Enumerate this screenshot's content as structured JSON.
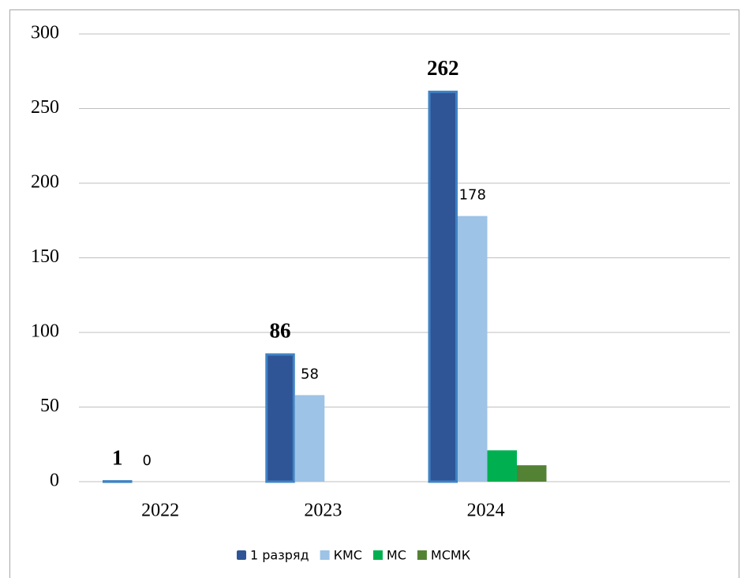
{
  "chart_data": {
    "type": "bar",
    "categories": [
      "2022",
      "2023",
      "2024",
      null
    ],
    "series": [
      {
        "name": "1 разряд",
        "color": "#2f5597",
        "values": [
          1,
          86,
          262,
          null
        ],
        "data_labels": true,
        "label_bold": true
      },
      {
        "name": "КМС",
        "color": "#9dc3e6",
        "values": [
          0,
          58,
          178,
          null
        ],
        "data_labels": true,
        "label_bold": false
      },
      {
        "name": "МС",
        "color": "#00b050",
        "values": [
          null,
          null,
          21,
          null
        ],
        "data_labels": false
      },
      {
        "name": "МСМК",
        "color": "#548235",
        "values": [
          null,
          null,
          11,
          null
        ],
        "data_labels": false
      }
    ],
    "ylim": [
      0,
      300
    ],
    "yticks": [
      0,
      50,
      100,
      150,
      200,
      250,
      300
    ],
    "grid": true,
    "legend": "bottom"
  }
}
